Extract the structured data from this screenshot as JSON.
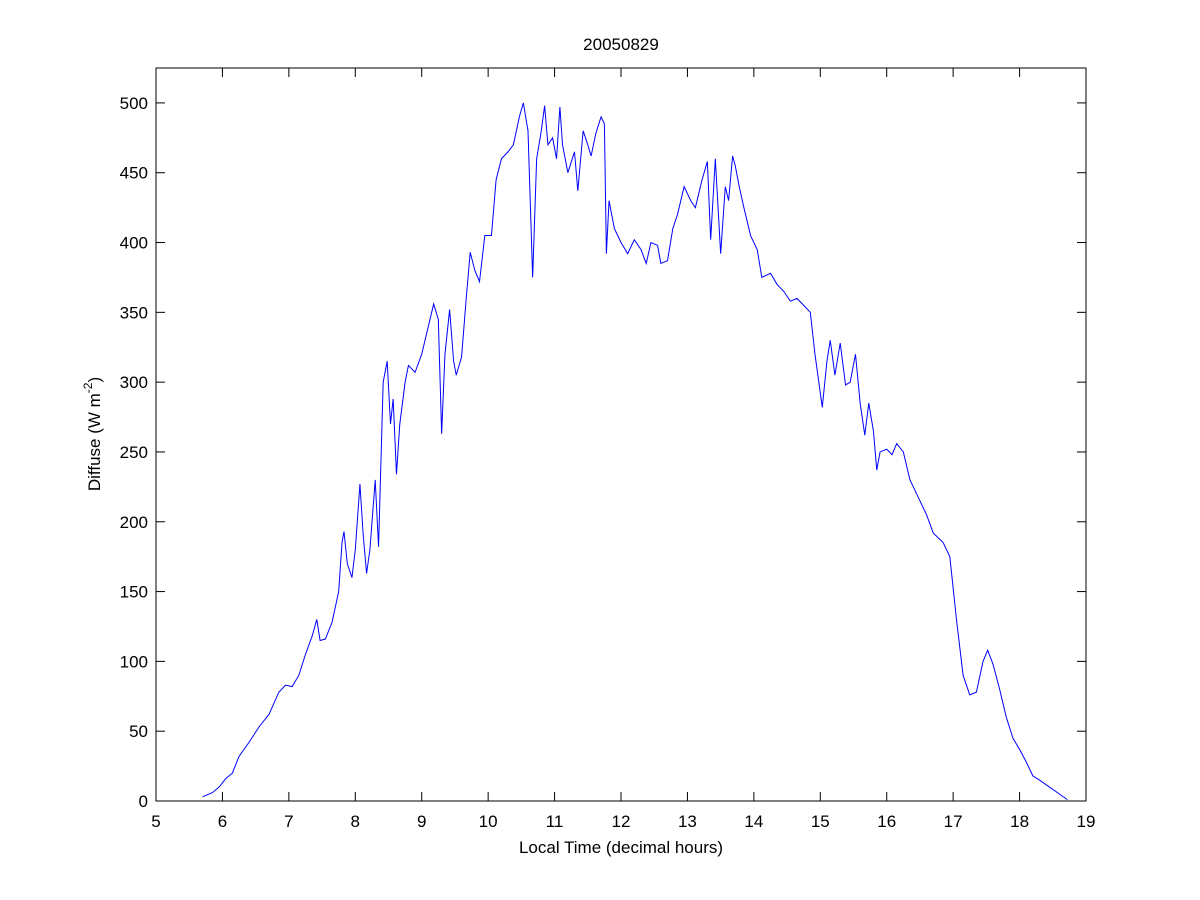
{
  "chart_data": {
    "type": "line",
    "title": "20050829",
    "xlabel": "Local Time (decimal hours)",
    "ylabel": {
      "text": "Diffuse (W m",
      "superscript": "-2",
      "suffix": ")"
    },
    "xlim": [
      5,
      19
    ],
    "xticks": [
      5,
      6,
      7,
      8,
      9,
      10,
      11,
      12,
      13,
      14,
      15,
      16,
      17,
      18,
      19
    ],
    "ylim": [
      0,
      525
    ],
    "yticks": [
      0,
      50,
      100,
      150,
      200,
      250,
      300,
      350,
      400,
      450,
      500
    ],
    "grid": false,
    "series": [
      {
        "color": "#0000ff",
        "x": [
          5.7,
          5.85,
          5.95,
          6.05,
          6.15,
          6.25,
          6.4,
          6.55,
          6.7,
          6.85,
          6.95,
          7.05,
          7.15,
          7.25,
          7.35,
          7.42,
          7.47,
          7.55,
          7.65,
          7.75,
          7.8,
          7.83,
          7.88,
          7.95,
          8.0,
          8.07,
          8.12,
          8.17,
          8.22,
          8.3,
          8.35,
          8.42,
          8.48,
          8.53,
          8.57,
          8.62,
          8.67,
          8.75,
          8.8,
          8.9,
          9.0,
          9.1,
          9.18,
          9.25,
          9.3,
          9.35,
          9.42,
          9.48,
          9.52,
          9.6,
          9.67,
          9.73,
          9.8,
          9.87,
          9.95,
          10.05,
          10.12,
          10.2,
          10.3,
          10.38,
          10.47,
          10.53,
          10.6,
          10.67,
          10.73,
          10.8,
          10.85,
          10.9,
          10.97,
          11.03,
          11.08,
          11.12,
          11.2,
          11.3,
          11.35,
          11.43,
          11.5,
          11.55,
          11.62,
          11.7,
          11.75,
          11.78,
          11.82,
          11.9,
          12.0,
          12.1,
          12.2,
          12.3,
          12.38,
          12.45,
          12.55,
          12.6,
          12.7,
          12.78,
          12.85,
          12.95,
          13.05,
          13.12,
          13.22,
          13.3,
          13.35,
          13.42,
          13.5,
          13.57,
          13.62,
          13.68,
          13.72,
          13.78,
          13.85,
          13.95,
          14.05,
          14.12,
          14.25,
          14.35,
          14.45,
          14.55,
          14.65,
          14.75,
          14.85,
          14.92,
          15.03,
          15.1,
          15.15,
          15.22,
          15.3,
          15.38,
          15.45,
          15.53,
          15.6,
          15.67,
          15.73,
          15.8,
          15.85,
          15.9,
          16.0,
          16.08,
          16.15,
          16.25,
          16.35,
          16.45,
          16.6,
          16.7,
          16.85,
          16.95,
          17.05,
          17.15,
          17.25,
          17.35,
          17.45,
          17.52,
          17.6,
          17.7,
          17.8,
          17.9,
          18.0,
          18.1,
          18.2,
          18.3,
          18.45,
          18.6,
          18.72
        ],
        "values": [
          3,
          6,
          10,
          16,
          20,
          32,
          42,
          53,
          62,
          78,
          83,
          82,
          90,
          105,
          118,
          130,
          115,
          116,
          128,
          150,
          185,
          193,
          170,
          160,
          180,
          227,
          190,
          163,
          180,
          230,
          182,
          300,
          315,
          270,
          288,
          234,
          270,
          300,
          312,
          307,
          320,
          340,
          356,
          345,
          263,
          320,
          352,
          315,
          305,
          318,
          360,
          393,
          380,
          372,
          405,
          405,
          445,
          460,
          465,
          470,
          490,
          500,
          480,
          375,
          460,
          480,
          498,
          470,
          475,
          460,
          497,
          470,
          450,
          465,
          437,
          480,
          470,
          462,
          478,
          490,
          485,
          392,
          430,
          410,
          400,
          392,
          402,
          395,
          385,
          400,
          398,
          385,
          387,
          410,
          420,
          440,
          430,
          425,
          445,
          458,
          402,
          460,
          392,
          440,
          430,
          462,
          455,
          440,
          425,
          405,
          395,
          375,
          378,
          370,
          365,
          358,
          360,
          355,
          350,
          320,
          282,
          315,
          330,
          305,
          328,
          298,
          300,
          320,
          285,
          262,
          285,
          265,
          237,
          250,
          252,
          248,
          256,
          250,
          230,
          220,
          205,
          192,
          185,
          175,
          130,
          90,
          76,
          78,
          100,
          108,
          98,
          80,
          60,
          45,
          37,
          28,
          18,
          15,
          10,
          5,
          1
        ]
      }
    ]
  }
}
